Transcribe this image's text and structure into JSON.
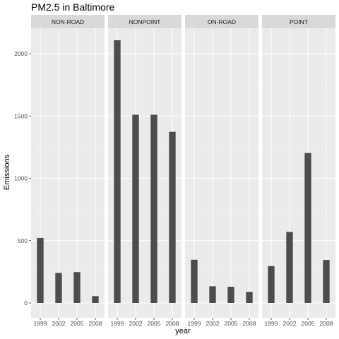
{
  "chart_data": {
    "type": "bar",
    "title": "PM2.5 in Baltimore",
    "xlabel": "year",
    "ylabel": "Emissions",
    "ylim": [
      0,
      2200
    ],
    "yticks": [
      0,
      500,
      1000,
      1500,
      2000
    ],
    "categories": [
      "1999",
      "2002",
      "2005",
      "2008"
    ],
    "facets": [
      {
        "name": "NON-ROAD",
        "values": [
          522,
          241,
          248,
          55
        ]
      },
      {
        "name": "NONPOINT",
        "values": [
          2108,
          1510,
          1510,
          1373
        ]
      },
      {
        "name": "ON-ROAD",
        "values": [
          347,
          134,
          130,
          89
        ]
      },
      {
        "name": "POINT",
        "values": [
          296,
          570,
          1203,
          345
        ]
      }
    ],
    "grid": true,
    "bar_color": "#4d4d4d"
  }
}
